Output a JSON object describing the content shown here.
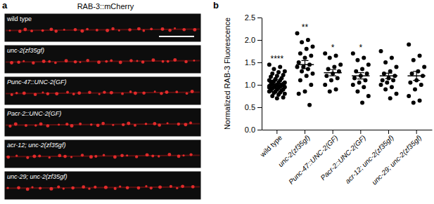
{
  "image_panel": {
    "label": "a",
    "title": "RAB-3::mCherry",
    "rows": [
      "wild type",
      "unc-2(zf35gf)",
      "Punc-47::UNC-2(GF)",
      "Pacr-2::UNC-2(GF)",
      "acr-12; unc-2(zf35gf)",
      "unc-29; unc-2(zf35gf)"
    ]
  },
  "chart_data": {
    "type": "scatter",
    "panel_label": "b",
    "y_label": "Normalized RAB-3 Fluorescence",
    "categories": [
      "wild type",
      "unc-2(zf35gf)",
      "Punc-47::UNC-2(GF)",
      "Pacr-2::UNC-2(GF)",
      "acr-12; unc-2(zf35gf)",
      "unc-29; unc-2(zf35gf)"
    ],
    "values": [
      [
        1.45,
        1.4,
        1.35,
        1.3,
        1.28,
        1.25,
        1.22,
        1.2,
        1.18,
        1.15,
        1.12,
        1.1,
        1.1,
        1.08,
        1.05,
        1.05,
        1.03,
        1.02,
        1.0,
        1.0,
        1.0,
        0.98,
        0.97,
        0.96,
        0.95,
        0.95,
        0.93,
        0.92,
        0.9,
        0.9,
        0.88,
        0.87,
        0.85,
        0.85,
        0.83,
        0.82,
        0.8,
        0.78,
        0.75,
        0.72,
        0.7,
        1.07,
        0.99,
        1.13,
        0.94
      ],
      [
        2.15,
        2.0,
        1.95,
        1.85,
        1.8,
        1.7,
        1.65,
        1.6,
        1.5,
        1.45,
        1.4,
        1.4,
        1.35,
        1.3,
        1.25,
        1.2,
        1.1,
        1.0,
        0.85,
        0.8,
        0.55
      ],
      [
        1.7,
        1.65,
        1.6,
        1.45,
        1.4,
        1.35,
        1.3,
        1.25,
        1.2,
        1.15,
        1.1,
        1.0,
        0.9,
        0.85
      ],
      [
        1.7,
        1.6,
        1.55,
        1.45,
        1.35,
        1.3,
        1.25,
        1.2,
        1.15,
        1.1,
        1.05,
        1.0,
        0.95,
        0.85,
        0.75,
        0.6
      ],
      [
        1.75,
        1.6,
        1.5,
        1.4,
        1.3,
        1.25,
        1.2,
        1.15,
        1.1,
        1.1,
        1.05,
        1.0,
        0.95,
        0.9,
        0.8,
        0.7
      ],
      [
        1.9,
        1.65,
        1.55,
        1.4,
        1.3,
        1.25,
        1.2,
        1.1,
        1.05,
        1.0,
        0.9,
        0.75,
        0.65,
        0.6
      ]
    ],
    "means": [
      1.0,
      1.45,
      1.27,
      1.2,
      1.2,
      1.2
    ],
    "sem": [
      0.03,
      0.09,
      0.07,
      0.07,
      0.06,
      0.1
    ],
    "significance": [
      "****",
      "**",
      "*",
      "*",
      null
    ],
    "color": "#000000",
    "ylim": [
      0,
      2.5
    ],
    "yticks": [
      {
        "value": 0,
        "label": "0.0"
      },
      0.5,
      {
        "value": 1,
        "label": "1.0"
      },
      1.5,
      {
        "value": 2,
        "label": "2.0"
      },
      2.5
    ]
  }
}
